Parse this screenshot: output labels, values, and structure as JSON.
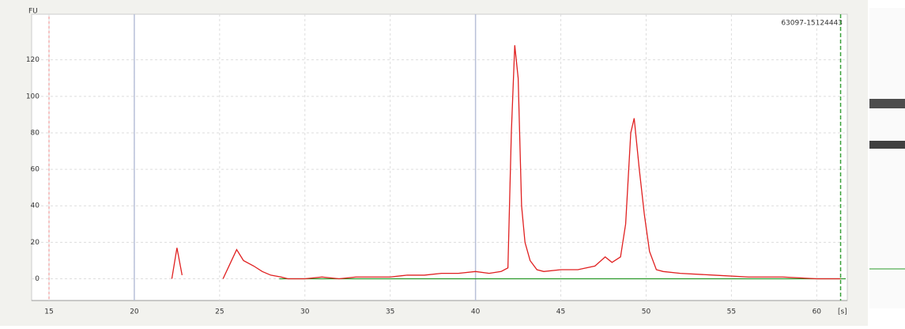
{
  "chart_data": {
    "type": "line",
    "title": "63097-15124443",
    "y_label": "FU",
    "x_label": "[s]",
    "xlim": [
      15,
      61.7
    ],
    "xticks": [
      15,
      20,
      25,
      30,
      35,
      40,
      45,
      50,
      55,
      60
    ],
    "ylim": [
      -10,
      145
    ],
    "yticks": [
      0,
      20,
      40,
      60,
      80,
      100,
      120
    ],
    "grid": true,
    "series": [
      {
        "color": "#e02020",
        "x": [
          22.2,
          22.5,
          22.8,
          null,
          25.2,
          25.6,
          26.0,
          26.4,
          27,
          27.5,
          28,
          28.6,
          29,
          30,
          31,
          32,
          33,
          34,
          35,
          36,
          37,
          38,
          39,
          40,
          40.8,
          41.5,
          41.9,
          42.1,
          42.3,
          42.5,
          42.7,
          42.9,
          43.2,
          43.6,
          44,
          45,
          46,
          47,
          47.6,
          48,
          48.5,
          48.8,
          49.1,
          49.3,
          49.6,
          49.9,
          50.2,
          50.6,
          51,
          52,
          54,
          56,
          58,
          60,
          61.4
        ],
        "values": [
          0,
          17,
          2,
          null,
          0,
          8,
          16,
          10,
          7,
          4,
          2,
          1,
          0,
          0,
          1,
          0,
          1,
          1,
          1,
          2,
          2,
          3,
          3,
          4,
          3,
          4,
          6,
          80,
          128,
          110,
          40,
          20,
          10,
          5,
          4,
          5,
          5,
          7,
          12,
          9,
          12,
          30,
          80,
          88,
          60,
          35,
          15,
          5,
          4,
          3,
          2,
          1,
          1,
          0,
          0
        ]
      },
      {
        "color": "#2a9a2a",
        "x": [
          28.5,
          61.7
        ],
        "values": [
          0,
          0
        ]
      }
    ],
    "markers": [
      {
        "x": 20,
        "color": "#b8c0d8",
        "dashed": false
      },
      {
        "x": 40,
        "color": "#b8c0d8",
        "dashed": false
      },
      {
        "x": 61.4,
        "color": "#3aa03a",
        "dashed": true
      }
    ]
  }
}
